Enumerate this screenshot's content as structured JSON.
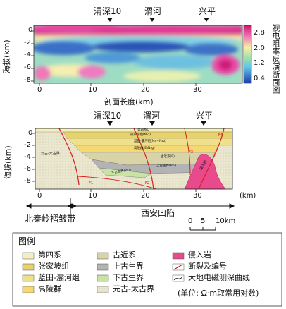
{
  "top_panel": {
    "stations": [
      "渭深10",
      "渭河",
      "兴平"
    ],
    "ylabel": "海拔(km)",
    "yticks": [
      "0",
      "-2",
      "-4",
      "-6",
      "-8"
    ],
    "xticks": [
      "0",
      "10",
      "20",
      "30"
    ],
    "xlabel": "剖面长度(km)",
    "colorbar_title": "视电阻率反演断面图",
    "colorbar_ticks": [
      "2.8",
      "2.0",
      "1.2",
      "0.4"
    ]
  },
  "bottom_panel": {
    "stations": [
      "渭深10",
      "渭河",
      "兴平"
    ],
    "ylabel": "海拔(km)",
    "yticks": [
      "0",
      "-2",
      "-4",
      "-6",
      "-8"
    ],
    "xticks": [
      "0",
      "10",
      "20",
      "30"
    ],
    "xunit": "(km)",
    "unit_labels": [
      "第四系Q",
      "张家坡组(N₂z)",
      "蓝田-灞河组(N₂l+N₂b)",
      "高陵群(E₃N₁g)",
      "古近系(E)",
      "上古生界(Pz₂)",
      "下古生界(Pz₁)",
      "元古-太古界",
      "侵入岩"
    ],
    "fault_labels": [
      "F1",
      "F2",
      "F3",
      "F4"
    ],
    "left_region": "北秦岭褶皱带",
    "right_region": "西安凹陷",
    "scale_ticks": [
      "0",
      "5",
      "10km"
    ]
  },
  "legend": {
    "title": "图例",
    "items": [
      "第四系",
      "张家坡组",
      "蓝田-灞河组",
      "高陵群",
      "古近系",
      "上古生界",
      "下古生界",
      "元古-太古界",
      "侵入岩",
      "断裂及编号",
      "大地电磁测深曲线"
    ],
    "unit_note": "(单位: Ω·m取常用对数)"
  },
  "colors": {
    "quaternary": "#f3efc0",
    "zhangjiapo": "#e8d36a",
    "lantian": "#efe08c",
    "gaoling": "#f5d872",
    "paleogene": "#d9d3a8",
    "upper_paleozoic": "#b3b3b3",
    "lower_paleozoic": "#c9e3a2",
    "proterozoic": "#ebe7cf",
    "intrusive": "#e84a8c",
    "fault": "#d81e1e"
  }
}
